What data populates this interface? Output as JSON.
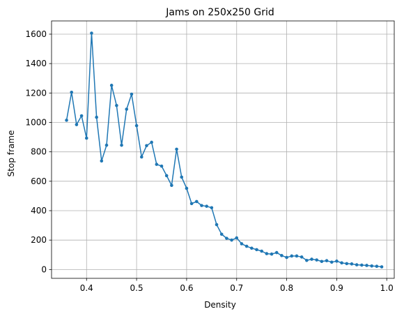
{
  "chart_data": {
    "type": "line",
    "title": "Jams on 250x250 Grid",
    "xlabel": "Density",
    "ylabel": "Stop frame",
    "xlim": [
      0.33,
      1.015
    ],
    "ylim": [
      -60,
      1690
    ],
    "xticks": [
      0.4,
      0.5,
      0.6,
      0.7,
      0.8,
      0.9,
      1.0
    ],
    "xtick_labels": [
      "0.4",
      "0.5",
      "0.6",
      "0.7",
      "0.8",
      "0.9",
      "1.0"
    ],
    "yticks": [
      0,
      200,
      400,
      600,
      800,
      1000,
      1200,
      1400,
      1600
    ],
    "ytick_labels": [
      "0",
      "200",
      "400",
      "600",
      "800",
      "1000",
      "1200",
      "1400",
      "1600"
    ],
    "grid": true,
    "series": [
      {
        "color": "#1f77b4",
        "marker": "circle",
        "x": [
          0.36,
          0.37,
          0.38,
          0.39,
          0.4,
          0.41,
          0.42,
          0.43,
          0.44,
          0.45,
          0.46,
          0.47,
          0.48,
          0.49,
          0.5,
          0.51,
          0.52,
          0.53,
          0.54,
          0.55,
          0.56,
          0.57,
          0.58,
          0.59,
          0.6,
          0.61,
          0.62,
          0.63,
          0.64,
          0.65,
          0.66,
          0.67,
          0.68,
          0.69,
          0.7,
          0.71,
          0.72,
          0.73,
          0.74,
          0.75,
          0.76,
          0.77,
          0.78,
          0.79,
          0.8,
          0.81,
          0.82,
          0.83,
          0.84,
          0.85,
          0.86,
          0.87,
          0.88,
          0.89,
          0.9,
          0.91,
          0.92,
          0.93,
          0.94,
          0.95,
          0.96,
          0.97,
          0.98,
          0.99
        ],
        "y": [
          1015,
          1205,
          985,
          1045,
          893,
          1607,
          1035,
          738,
          845,
          1252,
          1115,
          845,
          1090,
          1192,
          978,
          765,
          842,
          865,
          715,
          703,
          638,
          572,
          818,
          628,
          552,
          448,
          462,
          435,
          430,
          420,
          305,
          240,
          212,
          200,
          215,
          175,
          158,
          145,
          135,
          125,
          108,
          105,
          115,
          95,
          82,
          92,
          92,
          85,
          62,
          70,
          65,
          55,
          60,
          50,
          57,
          45,
          40,
          38,
          32,
          30,
          28,
          24,
          22,
          18
        ]
      }
    ]
  }
}
